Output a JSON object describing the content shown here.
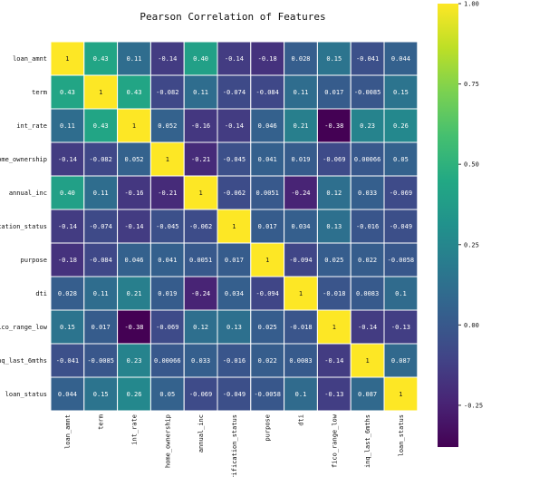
{
  "chart_data": {
    "type": "heatmap",
    "title": "Pearson Correlation of Features",
    "labels": [
      "loan_amnt",
      "term",
      "int_rate",
      "home_ownership",
      "annual_inc",
      "verification_status",
      "purpose",
      "dti",
      "fico_range_low",
      "inq_last_6mths",
      "loan_status"
    ],
    "y_tick_labels": [
      "loan_amnt",
      "term",
      "int_rate",
      "home_ownership",
      "annual_inc",
      "ication_status",
      "purpose",
      "dti",
      "fico_range_low",
      "inq_last_6mths",
      "loan_status"
    ],
    "values": [
      [
        1,
        0.43,
        0.11,
        -0.14,
        0.4,
        -0.14,
        -0.18,
        0.028,
        0.15,
        -0.041,
        0.044
      ],
      [
        0.43,
        1,
        0.43,
        -0.082,
        0.11,
        -0.074,
        -0.084,
        0.11,
        0.017,
        -0.0085,
        0.15
      ],
      [
        0.11,
        0.43,
        1,
        0.052,
        -0.16,
        -0.14,
        0.046,
        0.21,
        -0.38,
        0.23,
        0.26
      ],
      [
        -0.14,
        -0.082,
        0.052,
        1,
        -0.21,
        -0.045,
        0.041,
        0.019,
        -0.069,
        0.00066,
        0.05
      ],
      [
        0.4,
        0.11,
        -0.16,
        -0.21,
        1,
        -0.062,
        0.0051,
        -0.24,
        0.12,
        0.033,
        -0.069
      ],
      [
        -0.14,
        -0.074,
        -0.14,
        -0.045,
        -0.062,
        1,
        0.017,
        0.034,
        0.13,
        -0.016,
        -0.049
      ],
      [
        -0.18,
        -0.084,
        0.046,
        0.041,
        0.0051,
        0.017,
        1,
        -0.094,
        0.025,
        0.022,
        -0.0058
      ],
      [
        0.028,
        0.11,
        0.21,
        0.019,
        -0.24,
        0.034,
        -0.094,
        1,
        -0.018,
        0.0083,
        0.1
      ],
      [
        0.15,
        0.017,
        -0.38,
        -0.069,
        0.12,
        0.13,
        0.025,
        -0.018,
        1,
        -0.14,
        -0.13
      ],
      [
        -0.041,
        -0.0085,
        0.23,
        0.00066,
        0.033,
        -0.016,
        0.022,
        0.0083,
        -0.14,
        1,
        0.087
      ],
      [
        0.044,
        0.15,
        0.26,
        0.05,
        -0.069,
        -0.049,
        -0.0058,
        0.1,
        -0.13,
        0.087,
        1
      ]
    ],
    "cell_text": [
      [
        "1",
        "0.43",
        "0.11",
        "-0.14",
        "0.40",
        "-0.14",
        "-0.18",
        "0.028",
        "0.15",
        "-0.041",
        "0.044"
      ],
      [
        "0.43",
        "1",
        "0.43",
        "-0.082",
        "0.11",
        "-0.074",
        "-0.084",
        "0.11",
        "0.017",
        "-0.0085",
        "0.15"
      ],
      [
        "0.11",
        "0.43",
        "1",
        "0.052",
        "-0.16",
        "-0.14",
        "0.046",
        "0.21",
        "-0.38",
        "0.23",
        "0.26"
      ],
      [
        "-0.14",
        "-0.082",
        "0.052",
        "1",
        "-0.21",
        "-0.045",
        "0.041",
        "0.019",
        "-0.069",
        "0.00066",
        "0.05"
      ],
      [
        "0.40",
        "0.11",
        "-0.16",
        "-0.21",
        "1",
        "-0.062",
        "0.0051",
        "-0.24",
        "0.12",
        "0.033",
        "-0.069"
      ],
      [
        "-0.14",
        "-0.074",
        "-0.14",
        "-0.045",
        "-0.062",
        "1",
        "0.017",
        "0.034",
        "0.13",
        "-0.016",
        "-0.049"
      ],
      [
        "-0.18",
        "-0.084",
        "0.046",
        "0.041",
        "0.0051",
        "0.017",
        "1",
        "-0.094",
        "0.025",
        "0.022",
        "-0.0058"
      ],
      [
        "0.028",
        "0.11",
        "0.21",
        "0.019",
        "-0.24",
        "0.034",
        "-0.094",
        "1",
        "-0.018",
        "0.0083",
        "0.1"
      ],
      [
        "0.15",
        "0.017",
        "-0.38",
        "-0.069",
        "0.12",
        "0.13",
        "0.025",
        "-0.018",
        "1",
        "-0.14",
        "-0.13"
      ],
      [
        "-0.041",
        "-0.0085",
        "0.23",
        "0.00066",
        "0.033",
        "-0.016",
        "0.022",
        "0.0083",
        "-0.14",
        "1",
        "0.087"
      ],
      [
        "0.044",
        "0.15",
        "0.26",
        "0.05",
        "-0.069",
        "-0.049",
        "-0.0058",
        "0.1",
        "-0.13",
        "0.087",
        "1"
      ]
    ],
    "colormap": "viridis",
    "vmin": -0.38,
    "vmax": 1,
    "colorbar_ticks": [
      1.0,
      0.75,
      0.5,
      0.25,
      0.0,
      -0.25
    ],
    "colorbar_tick_labels": [
      "1.00",
      "0.75",
      "0.50",
      "0.25",
      "0.00",
      "-0.25"
    ],
    "cell_border_color": "#ffffff",
    "annotated": true
  }
}
